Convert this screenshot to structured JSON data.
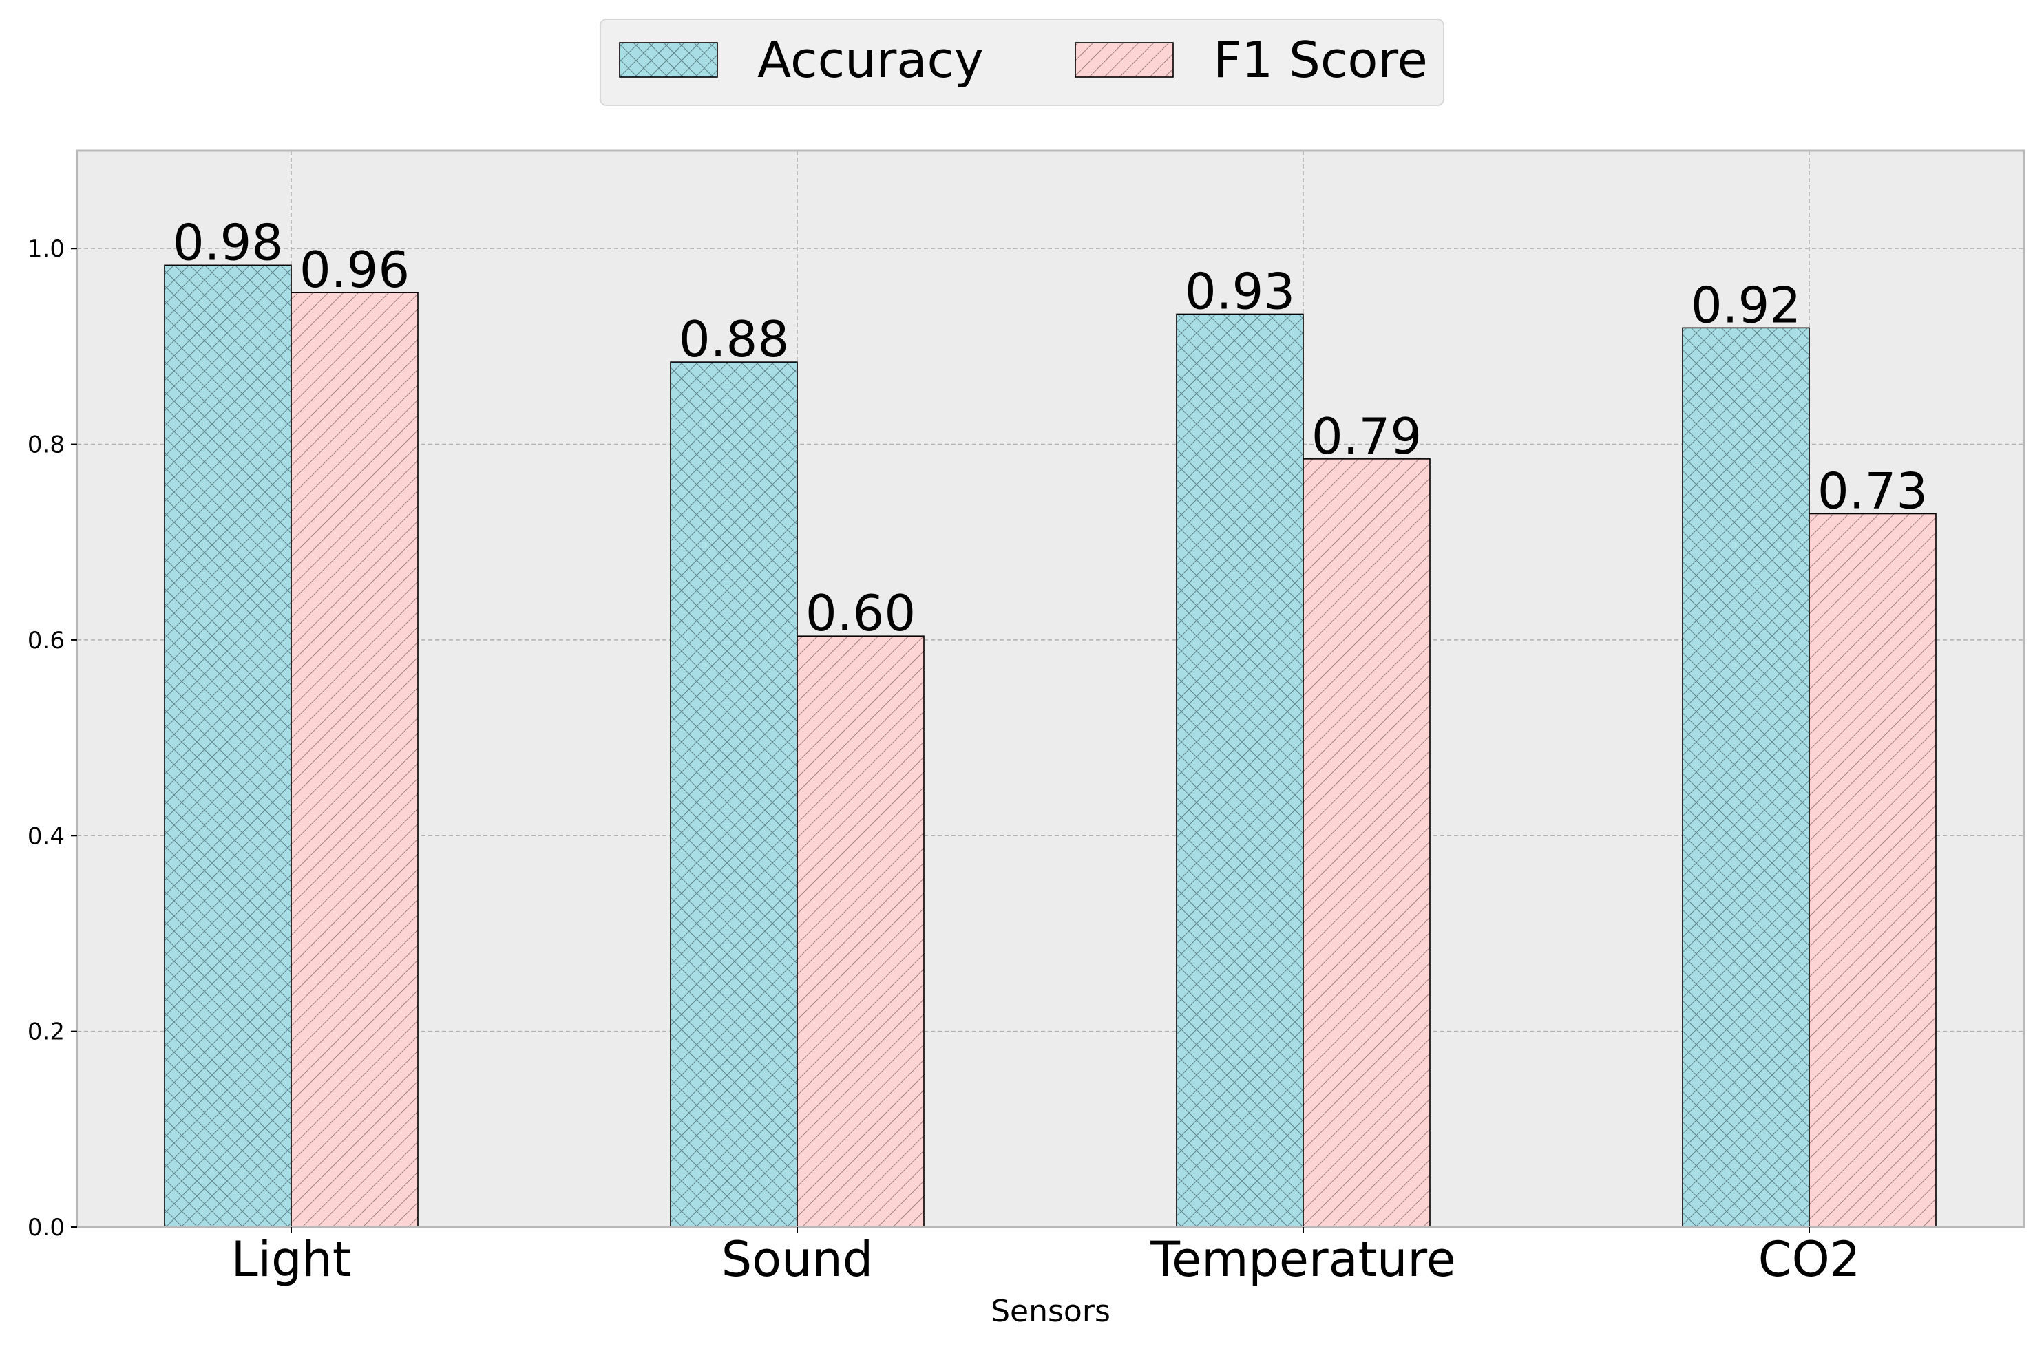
{
  "chart_data": {
    "type": "bar",
    "categories": [
      "Light",
      "Sound",
      "Temperature",
      "CO2"
    ],
    "series": [
      {
        "name": "Accuracy",
        "values": [
          0.983,
          0.884,
          0.933,
          0.919
        ],
        "labels": [
          "0.98",
          "0.88",
          "0.93",
          "0.92"
        ],
        "color": "#a8dde5",
        "hatch": "crosshatch"
      },
      {
        "name": "F1 Score",
        "values": [
          0.955,
          0.604,
          0.785,
          0.729
        ],
        "labels": [
          "0.96",
          "0.60",
          "0.79",
          "0.73"
        ],
        "color": "#fcd4d4",
        "hatch": "diagonal"
      }
    ],
    "title": "",
    "xlabel": "Sensors",
    "ylabel": "",
    "ylim": [
      0,
      1.1
    ],
    "yticks": [
      0.0,
      0.2,
      0.4,
      0.6,
      0.8,
      1.0
    ],
    "ytick_labels": [
      "0.0",
      "0.2",
      "0.4",
      "0.6",
      "0.8",
      "1.0"
    ],
    "grid": true,
    "legend_position": "top-center",
    "background_color": "#ececec"
  }
}
